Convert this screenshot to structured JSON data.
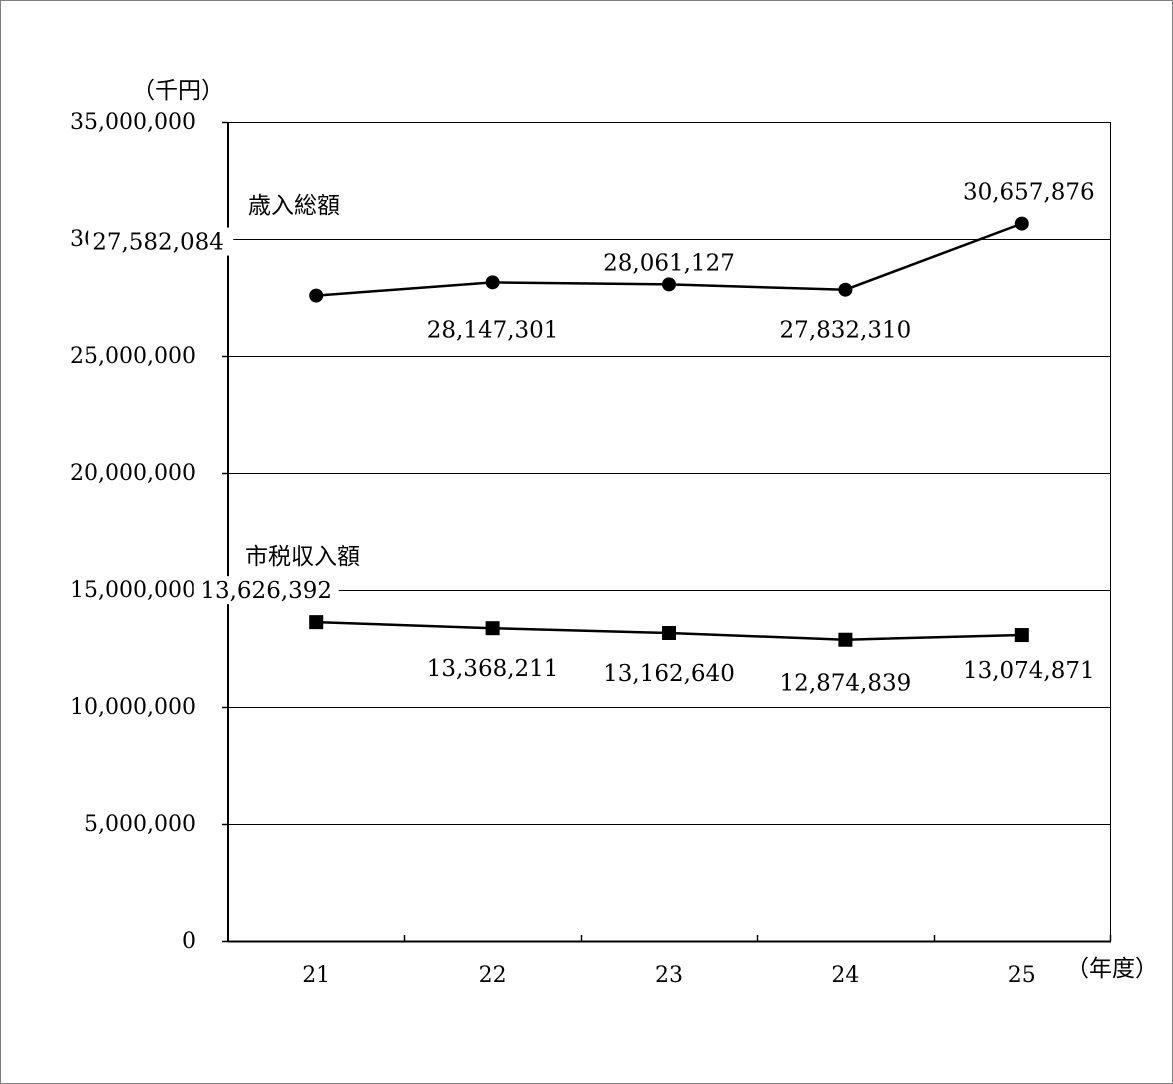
{
  "chart_data": {
    "type": "line",
    "ylabel": "（千円）",
    "xlabel": "（年度）",
    "ylim": [
      0,
      35000000
    ],
    "y_ticks": [
      0,
      5000000,
      10000000,
      15000000,
      20000000,
      25000000,
      30000000,
      35000000
    ],
    "y_tick_labels": [
      "0",
      "5,000,000",
      "10,000,000",
      "15,000,000",
      "20,000,000",
      "25,000,000",
      "30,000,000",
      "35,000,000"
    ],
    "categories": [
      "21",
      "22",
      "23",
      "24",
      "25"
    ],
    "grid": true,
    "series": [
      {
        "name": "歳入総額",
        "marker": "circle",
        "values": [
          27582084,
          28147301,
          28061127,
          27832310,
          30657876
        ],
        "labels": [
          "27,582,084",
          "28,147,301",
          "28,061,127",
          "27,832,310",
          "30,657,876"
        ]
      },
      {
        "name": "市税収入額",
        "marker": "square",
        "values": [
          13626392,
          13368211,
          13162640,
          12874839,
          13074871
        ],
        "labels": [
          "13,626,392",
          "13,368,211",
          "13,162,640",
          "12,874,839",
          "13,074,871"
        ]
      }
    ],
    "colors": {
      "line": "#000000",
      "grid": "#000000",
      "frame": "#808080"
    }
  }
}
